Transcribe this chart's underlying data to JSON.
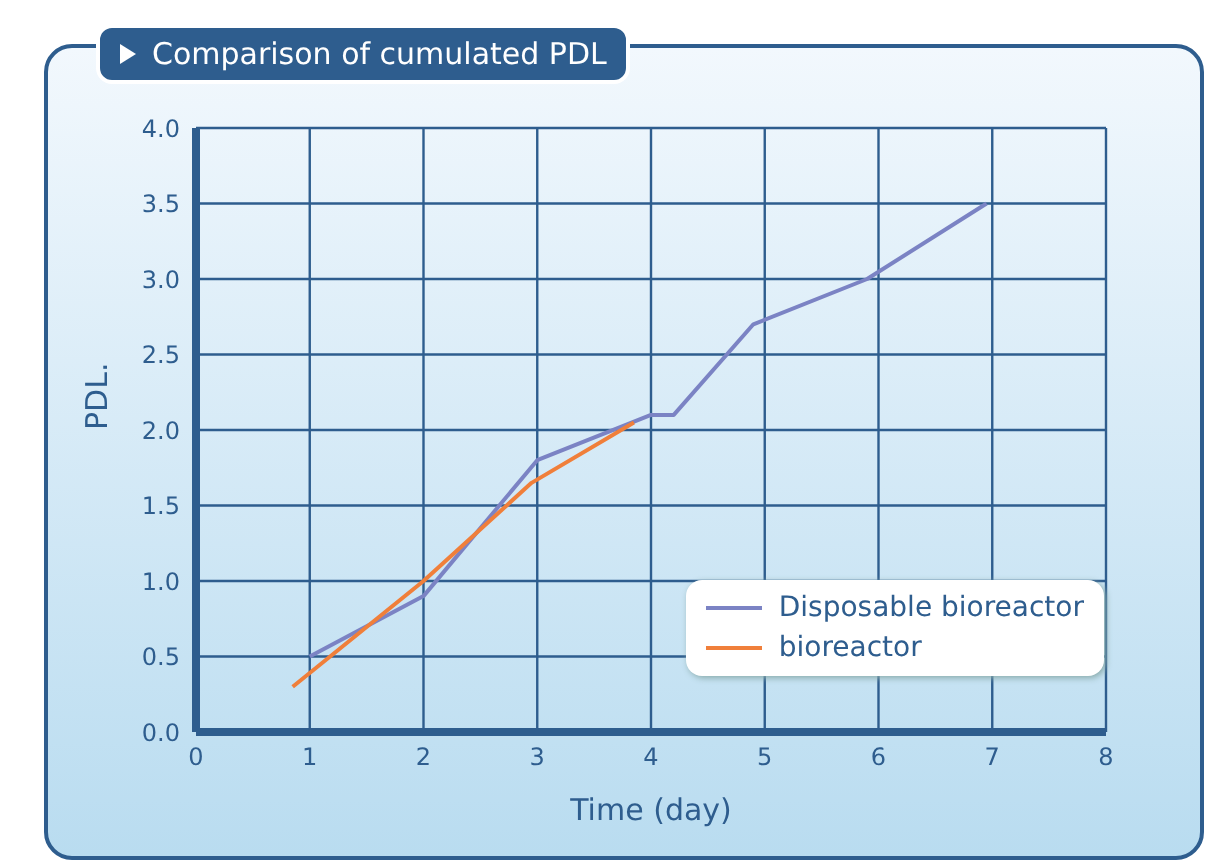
{
  "chart_data": {
    "type": "line",
    "title": "Comparison of cumulated PDL",
    "xlabel": "Time (day)",
    "ylabel": "PDL.",
    "series": [
      {
        "name": "Disposable bioreactor",
        "color": "#7b83c4",
        "x": [
          1,
          2,
          3,
          4,
          4.2,
          4.9,
          5.9,
          6.95
        ],
        "values": [
          0.5,
          0.9,
          1.8,
          2.1,
          2.1,
          2.7,
          3.0,
          3.5
        ]
      },
      {
        "name": "bioreactor",
        "color": "#f07f3a",
        "x": [
          0.85,
          2,
          2.95,
          3.85
        ],
        "values": [
          0.3,
          1.0,
          1.65,
          2.05
        ]
      }
    ],
    "xlim": [
      0,
      8
    ],
    "xticks": [
      0,
      1,
      2,
      3,
      4,
      5,
      6,
      7,
      8
    ],
    "ylim": [
      0,
      4
    ],
    "yticks": [
      {
        "value": 0,
        "label": "0.0"
      },
      {
        "value": 0.5,
        "label": "0.5"
      },
      {
        "value": 1,
        "label": "1.0"
      },
      {
        "value": 1.5,
        "label": "1.5"
      },
      {
        "value": 2,
        "label": "2.0"
      },
      {
        "value": 2.5,
        "label": "2.5"
      },
      {
        "value": 3,
        "label": "3.0"
      },
      {
        "value": 3.5,
        "label": "3.5"
      },
      {
        "value": 4,
        "label": "4.0"
      }
    ],
    "grid": true,
    "legend": "bottom right",
    "marker": "none",
    "line_style": "solid"
  }
}
